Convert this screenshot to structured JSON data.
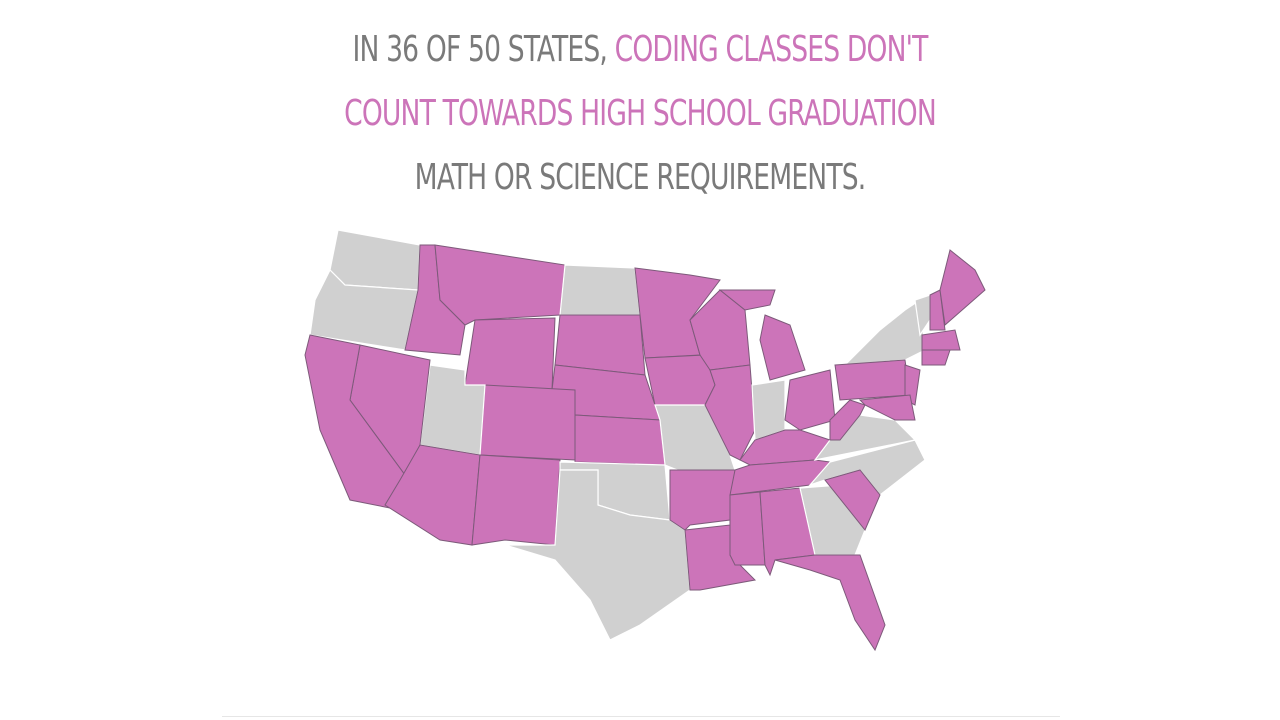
{
  "title": [
    "IN 36 OF 50 STATES,",
    "CODING CLASSES DON'T",
    "COUNT TOWARDS HIGH SCHOOL GRADUATION",
    "MATH OR SCIENCE REQUIREMENTS."
  ]
}
